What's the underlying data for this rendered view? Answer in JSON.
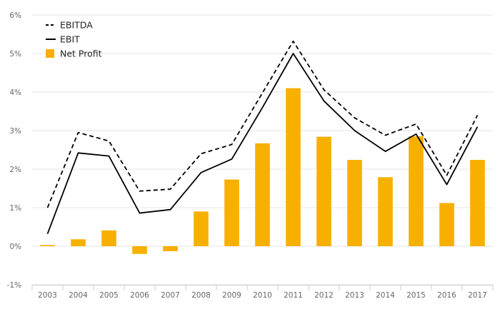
{
  "chart_data": {
    "type": "bar",
    "categories": [
      "2003",
      "2004",
      "2005",
      "2006",
      "2007",
      "2008",
      "2009",
      "2010",
      "2011",
      "2012",
      "2013",
      "2014",
      "2015",
      "2016",
      "2017"
    ],
    "series": [
      {
        "name": "EBITDA",
        "kind": "line",
        "style": "dashed",
        "color": "#000000",
        "values": [
          1.0,
          2.95,
          2.73,
          1.43,
          1.48,
          2.4,
          2.64,
          3.98,
          5.32,
          4.06,
          3.33,
          2.88,
          3.17,
          1.84,
          3.4
        ]
      },
      {
        "name": "EBIT",
        "kind": "line",
        "style": "solid",
        "color": "#000000",
        "values": [
          0.32,
          2.42,
          2.34,
          0.86,
          0.95,
          1.91,
          2.26,
          3.6,
          5.0,
          3.77,
          3.0,
          2.46,
          2.91,
          1.6,
          3.1
        ]
      },
      {
        "name": "Net Profit",
        "kind": "bar",
        "color": "#f7b000",
        "values": [
          0.03,
          0.18,
          0.41,
          -0.2,
          -0.13,
          0.9,
          1.73,
          2.67,
          4.1,
          2.84,
          2.24,
          1.79,
          2.85,
          1.12,
          2.24
        ]
      }
    ],
    "y_ticks": [
      "-1%",
      "0%",
      "1%",
      "2%",
      "3%",
      "4%",
      "5%",
      "6%"
    ],
    "ylim": [
      -1,
      6
    ],
    "grid": true,
    "legend_position": "top-left"
  }
}
